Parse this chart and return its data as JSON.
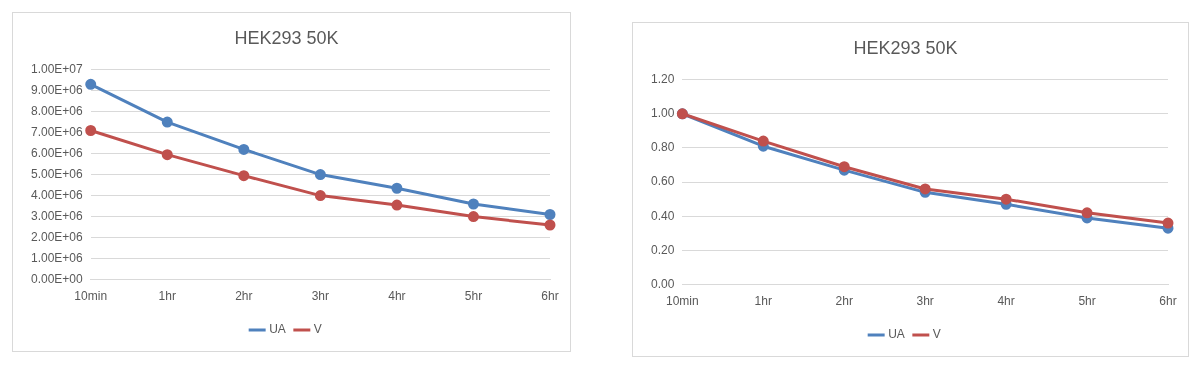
{
  "chart_data": [
    {
      "type": "line",
      "title": "HEK293 50K",
      "categories": [
        "10min",
        "1hr",
        "2hr",
        "3hr",
        "4hr",
        "5hr",
        "6hr"
      ],
      "series": [
        {
          "name": "UA",
          "color": "#4f81bd",
          "values": [
            9300000,
            7500000,
            6200000,
            5000000,
            4350000,
            3600000,
            3100000
          ]
        },
        {
          "name": "V",
          "color": "#c0504d",
          "values": [
            7100000,
            5950000,
            4950000,
            4000000,
            3550000,
            3000000,
            2600000
          ]
        }
      ],
      "ylim": [
        0,
        10000000
      ],
      "yticks": [
        {
          "value": 0,
          "label": "0.00E+00"
        },
        {
          "value": 1000000,
          "label": "1.00E+06"
        },
        {
          "value": 2000000,
          "label": "2.00E+06"
        },
        {
          "value": 3000000,
          "label": "3.00E+06"
        },
        {
          "value": 4000000,
          "label": "4.00E+06"
        },
        {
          "value": 5000000,
          "label": "5.00E+06"
        },
        {
          "value": 6000000,
          "label": "6.00E+06"
        },
        {
          "value": 7000000,
          "label": "7.00E+06"
        },
        {
          "value": 8000000,
          "label": "8.00E+06"
        },
        {
          "value": 9000000,
          "label": "9.00E+06"
        },
        {
          "value": 10000000,
          "label": "1.00E+07"
        }
      ],
      "grid": "y",
      "legend": "bottom",
      "marker": "circle",
      "line_style": "solid"
    },
    {
      "type": "line",
      "title": "HEK293 50K",
      "categories": [
        "10min",
        "1hr",
        "2hr",
        "3hr",
        "4hr",
        "5hr",
        "6hr"
      ],
      "series": [
        {
          "name": "UA",
          "color": "#4f81bd",
          "values": [
            1.0,
            0.81,
            0.67,
            0.54,
            0.47,
            0.39,
            0.33
          ]
        },
        {
          "name": "V",
          "color": "#c0504d",
          "values": [
            1.0,
            0.84,
            0.69,
            0.56,
            0.5,
            0.42,
            0.36
          ]
        }
      ],
      "ylim": [
        0,
        1.2
      ],
      "yticks": [
        {
          "value": 0,
          "label": "0.00"
        },
        {
          "value": 0.2,
          "label": "0.20"
        },
        {
          "value": 0.4,
          "label": "0.40"
        },
        {
          "value": 0.6,
          "label": "0.60"
        },
        {
          "value": 0.8,
          "label": "0.80"
        },
        {
          "value": 1,
          "label": "1.00"
        },
        {
          "value": 1.2,
          "label": "1.20"
        }
      ],
      "grid": "y",
      "legend": "bottom",
      "marker": "circle",
      "line_style": "solid"
    }
  ]
}
